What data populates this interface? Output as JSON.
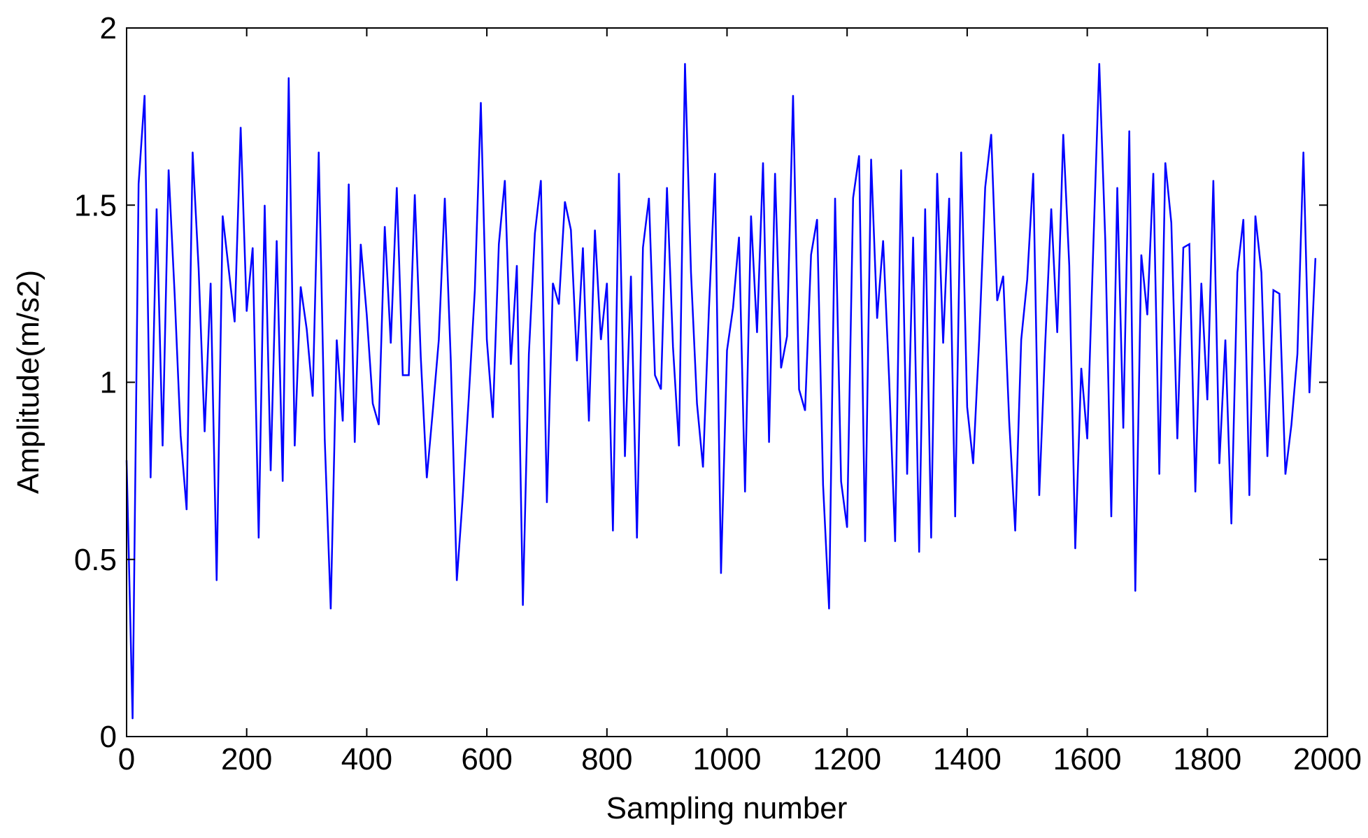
{
  "chart_data": {
    "type": "line",
    "title": "",
    "xlabel": "Sampling number",
    "ylabel": "Amplitude(m/s2)",
    "xlim": [
      0,
      2000
    ],
    "ylim": [
      0,
      2
    ],
    "xticks": [
      0,
      200,
      400,
      600,
      800,
      1000,
      1200,
      1400,
      1600,
      1800,
      2000
    ],
    "yticks": [
      0,
      0.5,
      1,
      1.5,
      2
    ],
    "xtick_labels": [
      "0",
      "200",
      "400",
      "600",
      "800",
      "1000",
      "1200",
      "1400",
      "1600",
      "1800",
      "2000"
    ],
    "ytick_labels": [
      "0",
      "0.5",
      "1",
      "1.5",
      "2"
    ],
    "grid": false,
    "box": true,
    "series": [
      {
        "color": "#0000ff",
        "x_start": 0,
        "x_step": 10,
        "values": [
          0.78,
          0.05,
          1.56,
          1.81,
          0.73,
          1.49,
          0.82,
          1.6,
          1.25,
          0.85,
          0.64,
          1.65,
          1.32,
          0.86,
          1.28,
          0.44,
          1.47,
          1.32,
          1.17,
          1.72,
          1.2,
          1.38,
          0.56,
          1.5,
          0.75,
          1.4,
          0.72,
          1.86,
          0.82,
          1.27,
          1.15,
          0.96,
          1.65,
          0.84,
          0.36,
          1.12,
          0.89,
          1.56,
          0.83,
          1.39,
          1.19,
          0.94,
          0.88,
          1.44,
          1.11,
          1.55,
          1.02,
          1.02,
          1.53,
          1.07,
          0.73,
          0.92,
          1.12,
          1.52,
          1.06,
          0.44,
          0.68,
          0.96,
          1.26,
          1.79,
          1.12,
          0.9,
          1.39,
          1.57,
          1.05,
          1.33,
          0.37,
          1.08,
          1.42,
          1.57,
          0.66,
          1.28,
          1.22,
          1.51,
          1.43,
          1.06,
          1.38,
          0.89,
          1.43,
          1.12,
          1.28,
          0.58,
          1.59,
          0.79,
          1.3,
          0.56,
          1.38,
          1.52,
          1.02,
          0.98,
          1.55,
          1.1,
          0.82,
          1.9,
          1.31,
          0.94,
          0.76,
          1.21,
          1.59,
          0.46,
          1.09,
          1.21,
          1.41,
          0.69,
          1.47,
          1.14,
          1.62,
          0.83,
          1.59,
          1.04,
          1.13,
          1.81,
          0.98,
          0.92,
          1.36,
          1.46,
          0.71,
          0.36,
          1.52,
          0.72,
          0.59,
          1.52,
          1.64,
          0.55,
          1.63,
          1.18,
          1.4,
          1.01,
          0.55,
          1.6,
          0.74,
          1.41,
          0.52,
          1.49,
          0.56,
          1.59,
          1.11,
          1.52,
          0.62,
          1.65,
          0.93,
          0.77,
          1.12,
          1.55,
          1.7,
          1.23,
          1.3,
          0.89,
          0.58,
          1.12,
          1.29,
          1.59,
          0.68,
          1.11,
          1.49,
          1.14,
          1.7,
          1.33,
          0.53,
          1.04,
          0.84,
          1.38,
          1.9,
          1.4,
          0.62,
          1.55,
          0.87,
          1.71,
          0.41,
          1.36,
          1.19,
          1.59,
          0.74,
          1.62,
          1.45,
          0.84,
          1.38,
          1.39,
          0.69,
          1.28,
          0.95,
          1.57,
          0.77,
          1.12,
          0.6,
          1.31,
          1.46,
          0.68,
          1.47,
          1.31,
          0.79,
          1.26,
          1.25,
          0.74,
          0.88,
          1.08,
          1.65,
          0.97,
          1.35
        ]
      }
    ]
  }
}
